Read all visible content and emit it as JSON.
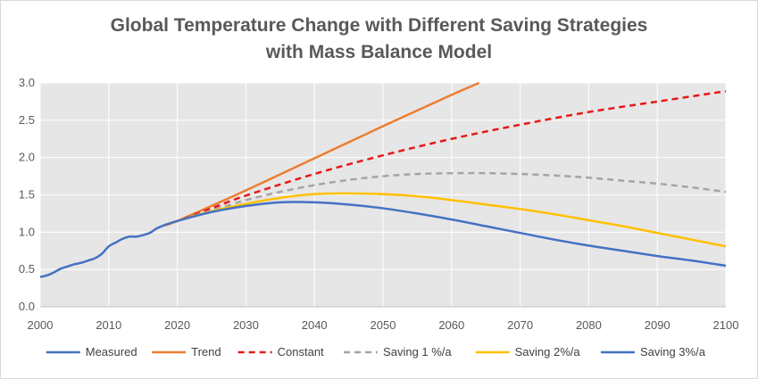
{
  "chart_data": {
    "type": "line",
    "title": [
      "Global Temperature Change with Different Saving Strategies",
      "with Mass Balance Model"
    ],
    "xlabel": "",
    "ylabel": "",
    "xlim": [
      2000,
      2100
    ],
    "ylim": [
      0.0,
      3.0
    ],
    "x_ticks": [
      2000,
      2010,
      2020,
      2030,
      2040,
      2050,
      2060,
      2070,
      2080,
      2090,
      2100
    ],
    "x_tick_labels": [
      "2000",
      "2010",
      "2020",
      "2030",
      "2040",
      "2050",
      "2060",
      "2070",
      "2080",
      "2090",
      "2100"
    ],
    "y_ticks": [
      0.0,
      0.5,
      1.0,
      1.5,
      2.0,
      2.5,
      3.0
    ],
    "y_tick_labels": [
      "0.0",
      "0.5",
      "1.0",
      "1.5",
      "2.0",
      "2.5",
      "3.0"
    ],
    "grid": true,
    "plot_background": "#e7e6e6",
    "legend_position": "bottom",
    "series": [
      {
        "name": "Measured",
        "color": "#4472c4",
        "dash": "solid",
        "x": [
          2000,
          2001,
          2002,
          2003,
          2004,
          2005,
          2006,
          2007,
          2008,
          2009,
          2010,
          2011,
          2012,
          2013,
          2014,
          2015,
          2016,
          2017,
          2018
        ],
        "y": [
          0.4,
          0.42,
          0.46,
          0.51,
          0.54,
          0.57,
          0.59,
          0.62,
          0.65,
          0.71,
          0.81,
          0.86,
          0.91,
          0.94,
          0.94,
          0.96,
          0.99,
          1.05,
          1.09
        ]
      },
      {
        "name": "Trend",
        "color": "#ed7d31",
        "dash": "solid",
        "x": [
          2018,
          2020,
          2030,
          2040,
          2050,
          2060,
          2064
        ],
        "y": [
          1.09,
          1.15,
          1.56,
          1.99,
          2.42,
          2.84,
          3.0
        ]
      },
      {
        "name": "Constant",
        "color": "#e81818",
        "dash": "dashed",
        "x": [
          2018,
          2020,
          2025,
          2030,
          2040,
          2050,
          2060,
          2070,
          2080,
          2090,
          2100
        ],
        "y": [
          1.09,
          1.15,
          1.32,
          1.49,
          1.78,
          2.03,
          2.25,
          2.44,
          2.61,
          2.75,
          2.89
        ]
      },
      {
        "name": "Saving 1 %/a",
        "color": "#a5a5a5",
        "dash": "dashed",
        "x": [
          2018,
          2020,
          2025,
          2030,
          2035,
          2040,
          2045,
          2050,
          2055,
          2060,
          2065,
          2070,
          2075,
          2080,
          2085,
          2090,
          2095,
          2100
        ],
        "y": [
          1.09,
          1.15,
          1.29,
          1.43,
          1.54,
          1.63,
          1.7,
          1.75,
          1.78,
          1.79,
          1.79,
          1.78,
          1.76,
          1.73,
          1.69,
          1.65,
          1.6,
          1.54
        ]
      },
      {
        "name": "Saving 2%/a",
        "color": "#ffc000",
        "dash": "solid",
        "x": [
          2018,
          2020,
          2025,
          2030,
          2035,
          2040,
          2045,
          2050,
          2055,
          2060,
          2065,
          2070,
          2075,
          2080,
          2085,
          2090,
          2095,
          2100
        ],
        "y": [
          1.09,
          1.15,
          1.28,
          1.38,
          1.46,
          1.51,
          1.52,
          1.51,
          1.48,
          1.43,
          1.37,
          1.31,
          1.24,
          1.16,
          1.08,
          0.99,
          0.9,
          0.81
        ]
      },
      {
        "name": "Saving 3%/a",
        "color": "#4472c4",
        "dash": "solid",
        "x": [
          2018,
          2020,
          2025,
          2030,
          2035,
          2040,
          2045,
          2050,
          2055,
          2060,
          2065,
          2070,
          2075,
          2080,
          2085,
          2090,
          2095,
          2100
        ],
        "y": [
          1.09,
          1.15,
          1.27,
          1.35,
          1.4,
          1.4,
          1.37,
          1.32,
          1.25,
          1.17,
          1.08,
          0.99,
          0.9,
          0.82,
          0.75,
          0.68,
          0.62,
          0.55
        ]
      }
    ]
  }
}
